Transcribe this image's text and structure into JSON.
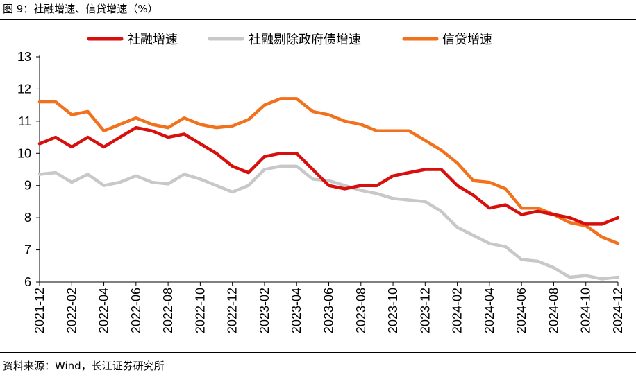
{
  "header": {
    "title": "图 9：社融增速、信贷增速（%）"
  },
  "footer": {
    "source": "资料来源：Wind，长江证券研究所"
  },
  "chart_data": {
    "type": "line",
    "title": "图 9：社融增速、信贷增速（%）",
    "xlabel": "",
    "ylabel": "",
    "ylim": [
      6,
      13
    ],
    "yticks": [
      6,
      7,
      8,
      9,
      10,
      11,
      12,
      13
    ],
    "grid": false,
    "legend_position": "top",
    "x": [
      "2021-12",
      "2022-01",
      "2022-02",
      "2022-03",
      "2022-04",
      "2022-05",
      "2022-06",
      "2022-07",
      "2022-08",
      "2022-09",
      "2022-10",
      "2022-11",
      "2022-12",
      "2023-01",
      "2023-02",
      "2023-03",
      "2023-04",
      "2023-05",
      "2023-06",
      "2023-07",
      "2023-08",
      "2023-09",
      "2023-10",
      "2023-11",
      "2023-12",
      "2024-01",
      "2024-02",
      "2024-03",
      "2024-04",
      "2024-05",
      "2024-06",
      "2024-07",
      "2024-08",
      "2024-09",
      "2024-10",
      "2024-11",
      "2024-12"
    ],
    "xtick_labels": [
      "2021-12",
      "2022-02",
      "2022-04",
      "2022-06",
      "2022-08",
      "2022-10",
      "2022-12",
      "2023-02",
      "2023-04",
      "2023-06",
      "2023-08",
      "2023-10",
      "2023-12",
      "2024-02",
      "2024-04",
      "2024-06",
      "2024-08",
      "2024-10",
      "2024-12"
    ],
    "series": [
      {
        "name": "社融增速",
        "color": "#D7100E",
        "values": [
          10.3,
          10.5,
          10.2,
          10.5,
          10.2,
          10.5,
          10.8,
          10.7,
          10.5,
          10.6,
          10.3,
          10.0,
          9.6,
          9.4,
          9.9,
          10.0,
          10.0,
          9.5,
          9.0,
          8.9,
          9.0,
          9.0,
          9.3,
          9.4,
          9.5,
          9.5,
          9.0,
          8.7,
          8.3,
          8.4,
          8.1,
          8.2,
          8.1,
          8.0,
          7.8,
          7.8,
          8.0
        ]
      },
      {
        "name": "社融剔除政府债增速",
        "color": "#C8C8C8",
        "values": [
          9.35,
          9.4,
          9.1,
          9.35,
          9.0,
          9.1,
          9.3,
          9.1,
          9.05,
          9.35,
          9.2,
          9.0,
          8.8,
          9.0,
          9.5,
          9.6,
          9.6,
          9.2,
          9.15,
          9.0,
          8.85,
          8.75,
          8.6,
          8.55,
          8.5,
          8.2,
          7.7,
          7.45,
          7.2,
          7.1,
          6.7,
          6.65,
          6.45,
          6.15,
          6.2,
          6.1,
          6.15
        ]
      },
      {
        "name": "信贷增速",
        "color": "#F2711C",
        "values": [
          11.6,
          11.6,
          11.2,
          11.3,
          10.7,
          10.9,
          11.1,
          10.9,
          10.8,
          11.1,
          10.9,
          10.8,
          10.85,
          11.05,
          11.5,
          11.7,
          11.7,
          11.3,
          11.2,
          11.0,
          10.9,
          10.7,
          10.7,
          10.7,
          10.4,
          10.1,
          9.7,
          9.15,
          9.1,
          8.9,
          8.3,
          8.3,
          8.1,
          7.85,
          7.75,
          7.4,
          7.2
        ]
      }
    ]
  }
}
